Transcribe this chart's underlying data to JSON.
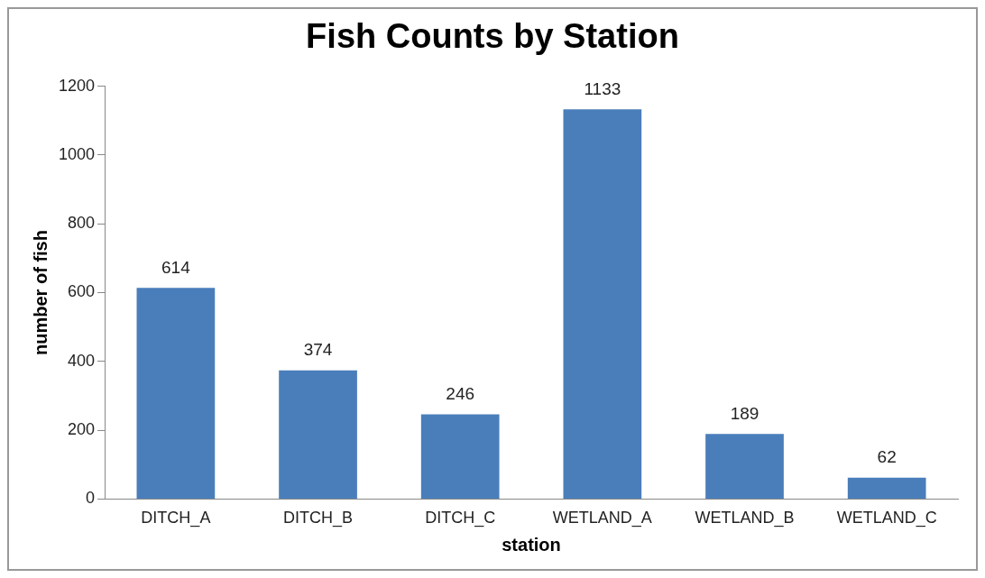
{
  "chart_data": {
    "type": "bar",
    "title": "Fish Counts by Station",
    "xlabel": "station",
    "ylabel": "number of fish",
    "categories": [
      "DITCH_A",
      "DITCH_B",
      "DITCH_C",
      "WETLAND_A",
      "WETLAND_B",
      "WETLAND_C"
    ],
    "values": [
      614,
      374,
      246,
      1133,
      189,
      62
    ],
    "color": "#4a7ebb",
    "ylim": [
      0,
      1200
    ],
    "yticks": [
      0,
      200,
      400,
      600,
      800,
      1000,
      1200
    ],
    "grid": false,
    "legend": false,
    "data_labels": true
  }
}
